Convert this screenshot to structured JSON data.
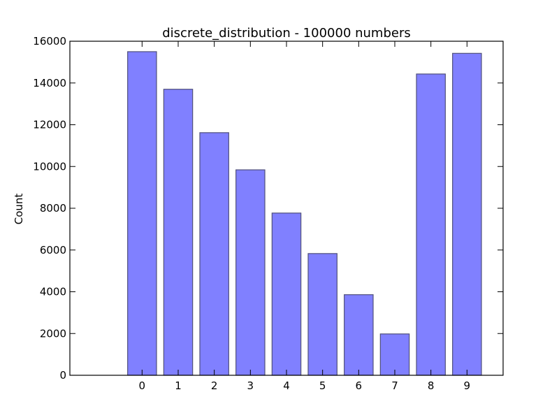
{
  "chart_data": {
    "type": "bar",
    "title": "discrete_distribution - 100000 numbers",
    "xlabel": "",
    "ylabel": "Count",
    "categories": [
      "0",
      "1",
      "2",
      "3",
      "4",
      "5",
      "6",
      "7",
      "8",
      "9"
    ],
    "values": [
      15500,
      13700,
      11620,
      9840,
      7770,
      5830,
      3860,
      1980,
      14430,
      15420
    ],
    "xlim": [
      -2,
      10
    ],
    "ylim": [
      0,
      16000
    ],
    "yticks": [
      0,
      2000,
      4000,
      6000,
      8000,
      10000,
      12000,
      14000,
      16000
    ],
    "grid": false,
    "bar_color": "#8080ff",
    "bar_edge_color": "#50507a",
    "axis_color": "#000000"
  }
}
